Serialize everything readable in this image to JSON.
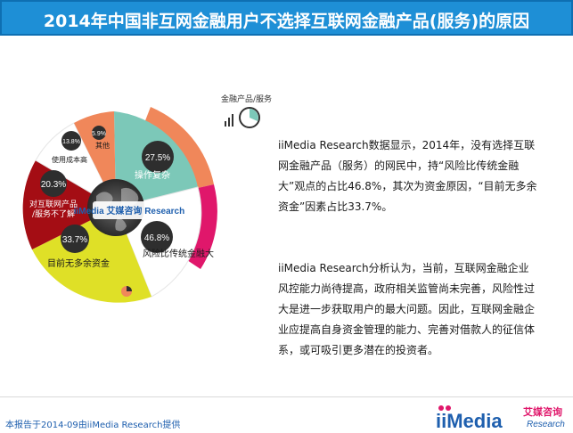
{
  "header": {
    "title": "2014年中国非互网金融用户不选择互联网金融产品(服务)的原因"
  },
  "chart_data": {
    "type": "pie",
    "center_label": "iiMedia 艾媒咨询 Research",
    "legend_label": "金融产品/服务",
    "slices": [
      {
        "name": "操作复杂",
        "value": 27.5,
        "label": "27.5%",
        "color": "#7cc8b8"
      },
      {
        "name": "风险比传统金融大",
        "value": 46.8,
        "label": "46.8%",
        "color": "#ffffff"
      },
      {
        "name": "目前无多余资金",
        "value": 33.7,
        "label": "33.7%",
        "color": "#dfe027"
      },
      {
        "name": "对互联网产品/服务不了解",
        "value": 20.3,
        "label": "20.3%",
        "color": "#a40d14"
      },
      {
        "name": "使用成本高",
        "value": 13.8,
        "label": "13.8%",
        "color": "#ffffff"
      },
      {
        "name": "其他",
        "value": 5.9,
        "label": "5.9%",
        "color": "#f0875a"
      }
    ],
    "colors": {
      "ring_orange": "#f0875a",
      "ring_magenta": "#e0176b",
      "center_dark": "#3a3a3a"
    }
  },
  "text": {
    "p1": "iiMedia Research数据显示，2014年，没有选择互联网金融产品（服务）的网民中，持“风险比传统金融大”观点的占比46.8%，其次为资金原因，“目前无多余资金”因素占比33.7%。",
    "p2": "iiMedia  Research分析认为，当前，互联网金融企业风控能力尚待提高，政府相关监管尚未完善，风险性过大是进一步获取用户的最大问题。因此，互联网金融企业应提高自身资金管理的能力、完善对借款人的征信体系，或可吸引更多潜在的投资者。"
  },
  "footer": {
    "note": "本报告于2014-09由iiMedia  Research提供",
    "brand_main": "iiMedia",
    "brand_cn": "艾媒咨询",
    "brand_en": "Research"
  }
}
